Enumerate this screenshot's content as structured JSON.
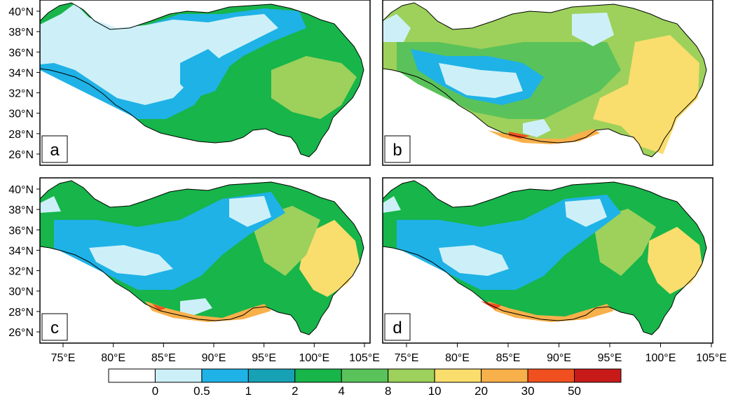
{
  "figure": {
    "panels": [
      {
        "letter": "a"
      },
      {
        "letter": "b"
      },
      {
        "letter": "c"
      },
      {
        "letter": "d"
      }
    ],
    "lat_ticks": [
      "26°N",
      "28°N",
      "30°N",
      "32°N",
      "34°N",
      "36°N",
      "38°N",
      "40°N"
    ],
    "lon_ticks_left": [
      "75°E",
      "80°E",
      "85°E",
      "90°E",
      "95°E",
      "100°E",
      "105°E"
    ],
    "lon_ticks_right": [
      "75°E",
      "80°E",
      "85°E",
      "90°E",
      "95°E",
      "100°E",
      "105°E"
    ],
    "colorbar": {
      "labels": [
        "0",
        "0.5",
        "1",
        "2",
        "4",
        "8",
        "10",
        "20",
        "30",
        "50"
      ],
      "colors": [
        "#ffffff",
        "#cdf0f8",
        "#1fb2e6",
        "#17a1b5",
        "#17b54a",
        "#5ac25a",
        "#9dd15b",
        "#f9dd6d",
        "#f8b04a",
        "#f05020",
        "#c91a1a"
      ]
    },
    "map_colors": {
      "land_outside": "#ffffff",
      "outline": "#000000",
      "very_low": "#cdf0f8",
      "low": "#1fb2e6",
      "mid_low": "#17a1b5",
      "mid": "#17b54a",
      "mid_high": "#5ac25a",
      "high": "#9dd15b",
      "very_high": "#f9dd6d",
      "extreme": "#f8b04a",
      "peak": "#f05020"
    }
  }
}
